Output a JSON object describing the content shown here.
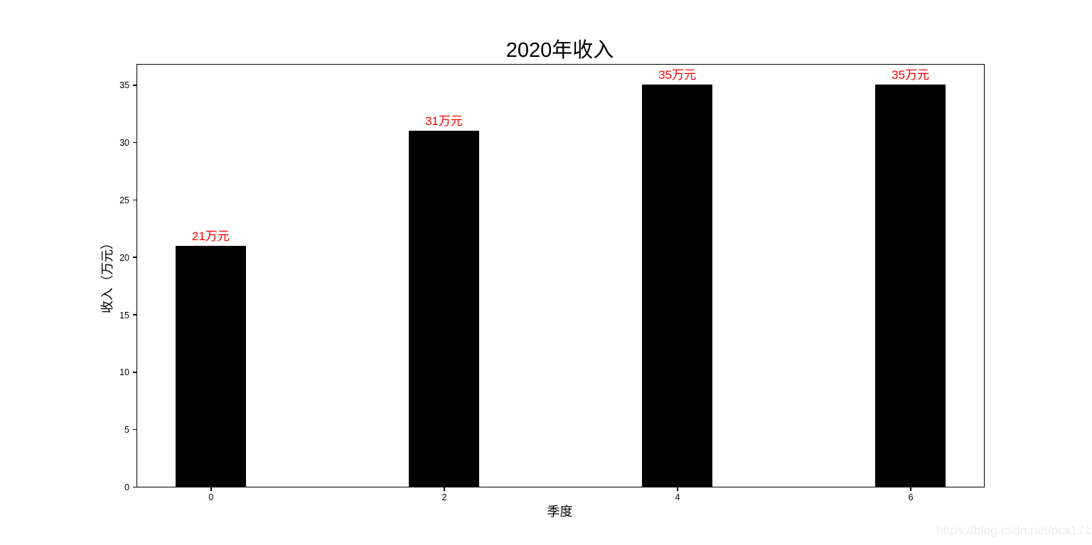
{
  "chart_data": {
    "type": "bar",
    "title": "2020年收入",
    "xlabel": "季度",
    "ylabel": "收入（万元）",
    "x": [
      0,
      2,
      4,
      6
    ],
    "values": [
      21,
      31,
      35,
      35
    ],
    "bar_labels": [
      "21万元",
      "31万元",
      "35万元",
      "35万元"
    ],
    "bar_width": 0.6,
    "xticks": [
      0,
      2,
      4,
      6
    ],
    "yticks": [
      0,
      5,
      10,
      15,
      20,
      25,
      30,
      35
    ],
    "xlim": [
      -0.63,
      6.63
    ],
    "ylim": [
      0,
      36.75
    ],
    "bar_color": "#000000",
    "value_label_color": "#ff0000",
    "axis_color": "#000000",
    "grid": false,
    "legend_position": "none"
  },
  "watermark": {
    "text": "https://blog.csdn.net/pcx171",
    "color": "#ececec"
  }
}
